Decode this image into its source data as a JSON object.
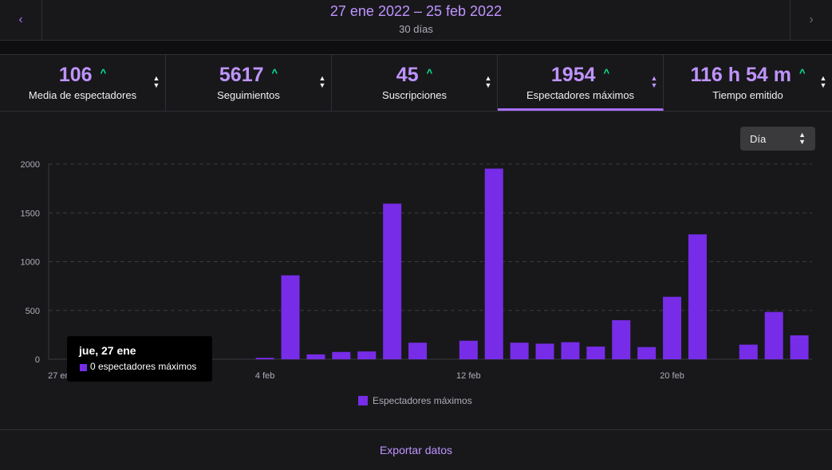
{
  "header": {
    "date_range": "27 ene 2022 – 25 feb 2022",
    "days": "30 días",
    "prev_icon": "‹",
    "next_icon": "›"
  },
  "stats": [
    {
      "value": "106",
      "label": "Media de espectadores",
      "active": false
    },
    {
      "value": "5617",
      "label": "Seguimientos",
      "active": false
    },
    {
      "value": "45",
      "label": "Suscripciones",
      "active": false
    },
    {
      "value": "1954",
      "label": "Espectadores máximos",
      "active": true
    },
    {
      "value": "116 h 54 m",
      "label": "Tiempo emitido",
      "active": false
    }
  ],
  "granularity": {
    "selected": "Día"
  },
  "tooltip": {
    "title": "jue, 27 ene",
    "value": "0 espectadores máximos"
  },
  "legend": {
    "label": "Espectadores máximos"
  },
  "footer": {
    "export_label": "Exportar datos"
  },
  "colors": {
    "accent": "#bf94ff",
    "bar": "#772ce8",
    "up": "#00f593"
  },
  "chart_data": {
    "type": "bar",
    "series": [
      {
        "name": "Espectadores máximos",
        "values": [
          0,
          0,
          0,
          0,
          0,
          0,
          0,
          0,
          15,
          860,
          50,
          75,
          80,
          1595,
          170,
          0,
          190,
          1954,
          170,
          160,
          175,
          130,
          400,
          125,
          640,
          1280,
          0,
          150,
          485,
          245
        ]
      }
    ],
    "categories": [
      "27 ene",
      "28 ene",
      "29 ene",
      "30 ene",
      "31 ene",
      "1 feb",
      "2 feb",
      "3 feb",
      "4 feb",
      "5 feb",
      "6 feb",
      "7 feb",
      "8 feb",
      "9 feb",
      "10 feb",
      "11 feb",
      "12 feb",
      "13 feb",
      "14 feb",
      "15 feb",
      "16 feb",
      "17 feb",
      "18 feb",
      "19 feb",
      "20 feb",
      "21 feb",
      "22 feb",
      "23 feb",
      "24 feb",
      "25 feb"
    ],
    "x_tick_labels": [
      {
        "index": 0,
        "label": "27 ene"
      },
      {
        "index": 8,
        "label": "4 feb"
      },
      {
        "index": 16,
        "label": "12 feb"
      },
      {
        "index": 24,
        "label": "20 feb"
      }
    ],
    "y_ticks": [
      0,
      500,
      1000,
      1500,
      2000
    ],
    "ylim": [
      0,
      2000
    ],
    "grid": true,
    "legend": "bottom-center"
  }
}
